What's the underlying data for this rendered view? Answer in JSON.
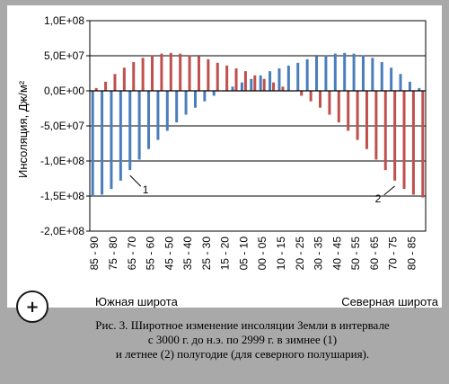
{
  "chart_data": {
    "type": "bar",
    "ylabel": "Инсоляция, Дж/м²",
    "ylim": [
      -200000000,
      100000000
    ],
    "yticks": [
      "1,0E+08",
      "5,0E+07",
      "0,0E+00",
      "-5,0E+07",
      "-1,0E+08",
      "-1,5E+08",
      "-2,0E+08"
    ],
    "ytick_values": [
      100000000,
      50000000,
      0,
      -50000000,
      -100000000,
      -150000000,
      -200000000
    ],
    "categories": [
      "85 - 90",
      "80 - 85",
      "75 - 80",
      "70 - 75",
      "65 - 70",
      "60 - 65",
      "55 - 60",
      "50 - 55",
      "45 - 50",
      "40 - 45",
      "35 - 40",
      "30 - 35",
      "25 - 30",
      "20 - 25",
      "15 - 20",
      "10 - 15",
      "05 - 10",
      "00 - 05",
      "00 - 05",
      "05 - 10",
      "10 - 15",
      "15 - 20",
      "20 - 25",
      "25 - 30",
      "30 - 35",
      "35 - 40",
      "40 - 45",
      "45 - 50",
      "50 - 55",
      "55 - 60",
      "60 - 65",
      "65 - 70",
      "70 - 75",
      "75 - 80",
      "80 - 85",
      "85 - 90"
    ],
    "xtick_labels": [
      "85 - 90",
      "75 - 80",
      "65 - 70",
      "55 - 60",
      "45 - 50",
      "35 - 40",
      "25 - 30",
      "15 - 20",
      "05 - 10",
      "00 - 05",
      "10 - 15",
      "20 - 25",
      "30 - 35",
      "40 - 45",
      "50 - 55",
      "60 - 65",
      "70 - 75",
      "80 - 85"
    ],
    "series": [
      {
        "name": "1",
        "color": "#4a7ebb",
        "values": [
          -150000000,
          -148000000,
          -140000000,
          -128000000,
          -113000000,
          -98000000,
          -83000000,
          -70000000,
          -57000000,
          -45000000,
          -34000000,
          -24000000,
          -15000000,
          -7000000,
          0,
          6000000,
          12000000,
          17000000,
          22000000,
          28000000,
          32000000,
          36000000,
          40000000,
          45000000,
          49000000,
          51000000,
          53000000,
          54000000,
          53000000,
          51000000,
          47000000,
          41000000,
          33000000,
          24000000,
          13000000,
          4000000
        ]
      },
      {
        "name": "2",
        "color": "#c0504d",
        "values": [
          4000000,
          13000000,
          24000000,
          33000000,
          41000000,
          47000000,
          51000000,
          53000000,
          54000000,
          53000000,
          51000000,
          49000000,
          45000000,
          40000000,
          36000000,
          32000000,
          28000000,
          22000000,
          17000000,
          12000000,
          6000000,
          0,
          -7000000,
          -15000000,
          -24000000,
          -34000000,
          -45000000,
          -57000000,
          -70000000,
          -83000000,
          -98000000,
          -113000000,
          -128000000,
          -140000000,
          -148000000,
          -152000000
        ]
      }
    ],
    "annotations": [
      "1",
      "2"
    ],
    "south_label": "Южная широта",
    "north_label": "Северная широта",
    "grid": "horizontal"
  },
  "caption": {
    "line1": "Рис. 3. Широтное изменение инсоляции Земли в интервале",
    "line2": "с 3000 г. до н.э. по 2999 г. в зимнее (1)",
    "line3": "и летнее (2) полугодие (для северного полушария)."
  },
  "zoom_button": {
    "label": "+"
  },
  "colors": {
    "winter": "#4a7ebb",
    "summer": "#c0504d",
    "background": "#a9a9a9"
  }
}
